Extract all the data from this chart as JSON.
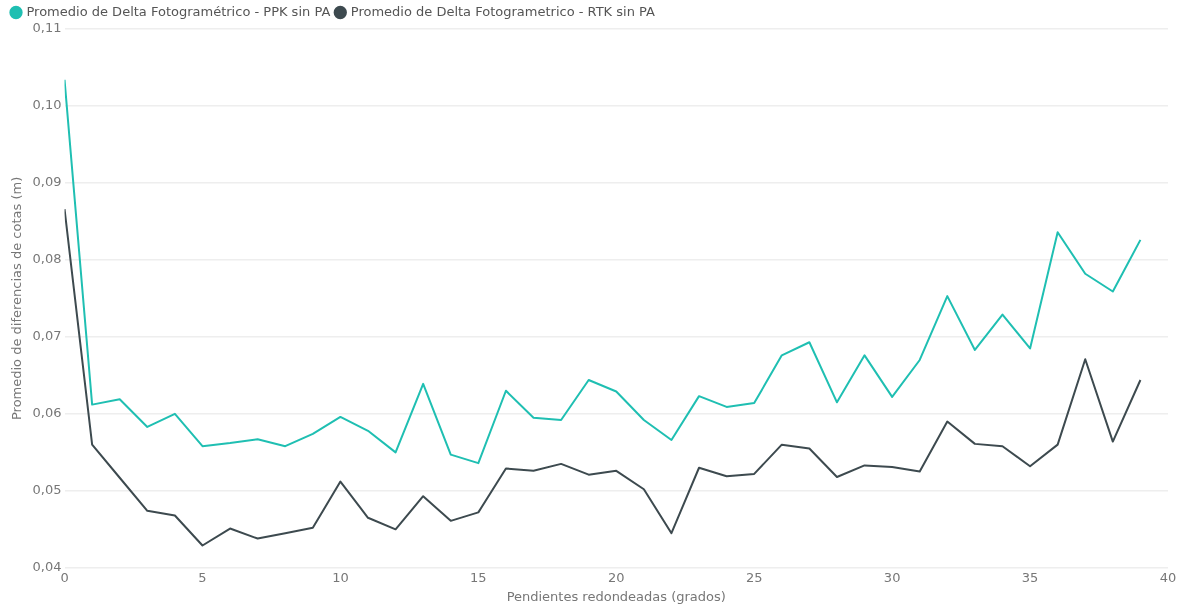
{
  "chart_data": {
    "type": "line",
    "xlabel": "Pendientes redondeadas (grados)",
    "ylabel": "Promedio de diferencias de cotas (m)",
    "x": [
      0,
      1,
      2,
      3,
      4,
      5,
      6,
      7,
      8,
      9,
      10,
      11,
      12,
      13,
      14,
      15,
      16,
      17,
      18,
      19,
      20,
      21,
      22,
      23,
      24,
      25,
      26,
      27,
      28,
      29,
      30,
      31,
      32,
      33,
      34,
      35,
      36,
      37,
      38,
      39
    ],
    "series": [
      {
        "name": "Promedio de Delta Fotogramétrico - PPK sin PA",
        "color": "#1fbfb2",
        "values": [
          0.1034,
          0.0612,
          0.0619,
          0.0583,
          0.06,
          0.0558,
          0.0562,
          0.0567,
          0.0558,
          0.0574,
          0.0596,
          0.0578,
          0.055,
          0.0639,
          0.0547,
          0.0536,
          0.063,
          0.0595,
          0.0592,
          0.0644,
          0.0629,
          0.0592,
          0.0566,
          0.0623,
          0.0609,
          0.0614,
          0.0676,
          0.0693,
          0.0615,
          0.0676,
          0.0622,
          0.067,
          0.0753,
          0.0683,
          0.0729,
          0.0685,
          0.0836,
          0.0782,
          0.0759,
          0.0826
        ]
      },
      {
        "name": "Promedio de Delta Fotogrametrico - RTK sin PA",
        "color": "#3d4a4f",
        "values": [
          0.0866,
          0.056,
          0.0517,
          0.0474,
          0.0468,
          0.0429,
          0.0451,
          0.0438,
          0.0445,
          0.0452,
          0.0512,
          0.0465,
          0.045,
          0.0493,
          0.0461,
          0.0472,
          0.0529,
          0.0526,
          0.0535,
          0.0521,
          0.0526,
          0.0502,
          0.0445,
          0.053,
          0.0519,
          0.0522,
          0.056,
          0.0555,
          0.0518,
          0.0533,
          0.0531,
          0.0525,
          0.059,
          0.0561,
          0.0558,
          0.0532,
          0.056,
          0.0671,
          0.0564,
          0.0644
        ]
      }
    ],
    "xlim": [
      0,
      40
    ],
    "xticks": [
      0,
      5,
      10,
      15,
      20,
      25,
      30,
      35,
      40
    ],
    "ylim": [
      0.04,
      0.11
    ],
    "yticks": [
      {
        "value": 0.04,
        "label": "0,04"
      },
      {
        "value": 0.05,
        "label": "0,05"
      },
      {
        "value": 0.06,
        "label": "0,06"
      },
      {
        "value": 0.07,
        "label": "0,07"
      },
      {
        "value": 0.08,
        "label": "0,08"
      },
      {
        "value": 0.09,
        "label": "0,09"
      },
      {
        "value": 0.1,
        "label": "0,10"
      },
      {
        "value": 0.11,
        "label": "0,11"
      }
    ],
    "grid": "y",
    "legend": "top left",
    "marker": "none",
    "line_style": "solid"
  }
}
